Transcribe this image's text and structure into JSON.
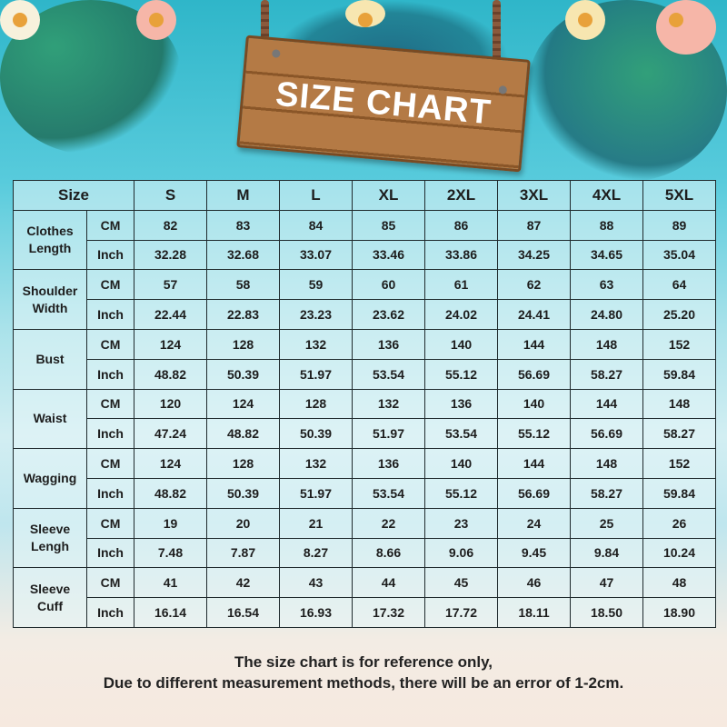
{
  "title": "SIZE CHART",
  "header": {
    "size_label": "Size",
    "sizes": [
      "S",
      "M",
      "L",
      "XL",
      "2XL",
      "3XL",
      "4XL",
      "5XL"
    ]
  },
  "measurements": [
    {
      "name": "Clothes Length",
      "cm": [
        "82",
        "83",
        "84",
        "85",
        "86",
        "87",
        "88",
        "89"
      ],
      "inch": [
        "32.28",
        "32.68",
        "33.07",
        "33.46",
        "33.86",
        "34.25",
        "34.65",
        "35.04"
      ]
    },
    {
      "name": "Shoulder Width",
      "cm": [
        "57",
        "58",
        "59",
        "60",
        "61",
        "62",
        "63",
        "64"
      ],
      "inch": [
        "22.44",
        "22.83",
        "23.23",
        "23.62",
        "24.02",
        "24.41",
        "24.80",
        "25.20"
      ]
    },
    {
      "name": "Bust",
      "cm": [
        "124",
        "128",
        "132",
        "136",
        "140",
        "144",
        "148",
        "152"
      ],
      "inch": [
        "48.82",
        "50.39",
        "51.97",
        "53.54",
        "55.12",
        "56.69",
        "58.27",
        "59.84"
      ]
    },
    {
      "name": "Waist",
      "cm": [
        "120",
        "124",
        "128",
        "132",
        "136",
        "140",
        "144",
        "148"
      ],
      "inch": [
        "47.24",
        "48.82",
        "50.39",
        "51.97",
        "53.54",
        "55.12",
        "56.69",
        "58.27"
      ]
    },
    {
      "name": "Wagging",
      "cm": [
        "124",
        "128",
        "132",
        "136",
        "140",
        "144",
        "148",
        "152"
      ],
      "inch": [
        "48.82",
        "50.39",
        "51.97",
        "53.54",
        "55.12",
        "56.69",
        "58.27",
        "59.84"
      ]
    },
    {
      "name": "Sleeve Lengh",
      "cm": [
        "19",
        "20",
        "21",
        "22",
        "23",
        "24",
        "25",
        "26"
      ],
      "inch": [
        "7.48",
        "7.87",
        "8.27",
        "8.66",
        "9.06",
        "9.45",
        "9.84",
        "10.24"
      ]
    },
    {
      "name": "Sleeve Cuff",
      "cm": [
        "41",
        "42",
        "43",
        "44",
        "45",
        "46",
        "47",
        "48"
      ],
      "inch": [
        "16.14",
        "16.54",
        "16.93",
        "17.32",
        "17.72",
        "18.11",
        "18.50",
        "18.90"
      ]
    }
  ],
  "units": {
    "cm": "CM",
    "inch": "Inch"
  },
  "footer": {
    "line1": "The size chart is for reference only,",
    "line2": "Due to different measurement methods, there will be an error of 1-2cm."
  },
  "colors": {
    "sky": "#2fb6c9",
    "wood": "#b47a45",
    "text": "#1d1d1d"
  }
}
